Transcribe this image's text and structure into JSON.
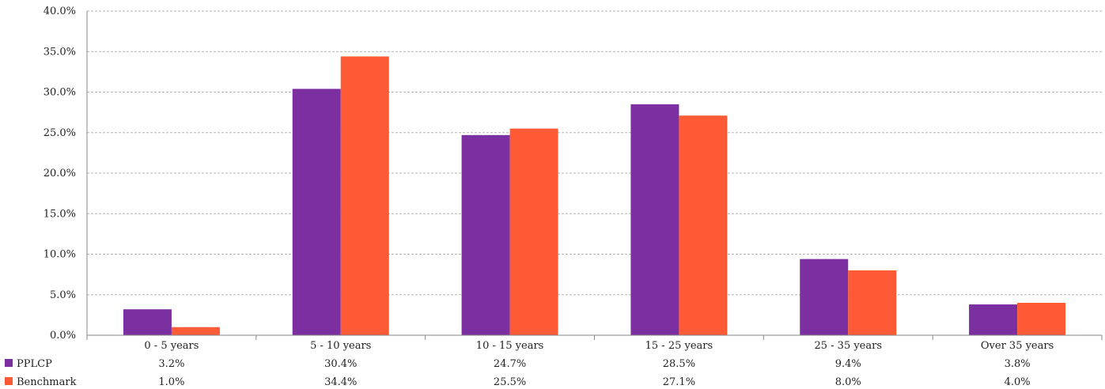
{
  "chart_data": {
    "type": "bar",
    "categories": [
      "0 - 5 years",
      "5 - 10 years",
      "10 - 15 years",
      "15 - 25 years",
      "25 - 35 years",
      "Over 35 years"
    ],
    "series": [
      {
        "name": "PPLCP",
        "color": "#7B2FA0",
        "values": [
          3.2,
          30.4,
          24.7,
          28.5,
          9.4,
          3.8
        ],
        "labels": [
          "3.2%",
          "30.4%",
          "24.7%",
          "28.5%",
          "9.4%",
          "3.8%"
        ]
      },
      {
        "name": "Benchmark",
        "color": "#FF5A36",
        "values": [
          1.0,
          34.4,
          25.5,
          27.1,
          8.0,
          4.0
        ],
        "labels": [
          "1.0%",
          "34.4%",
          "25.5%",
          "27.1%",
          "8.0%",
          "4.0%"
        ]
      }
    ],
    "yticks": [
      "0.0%",
      "5.0%",
      "10.0%",
      "15.0%",
      "20.0%",
      "25.0%",
      "30.0%",
      "35.0%",
      "40.0%"
    ],
    "ylim": [
      0,
      40
    ],
    "grid": true,
    "legend": "data-table-left",
    "title": "",
    "xlabel": "",
    "ylabel": ""
  }
}
